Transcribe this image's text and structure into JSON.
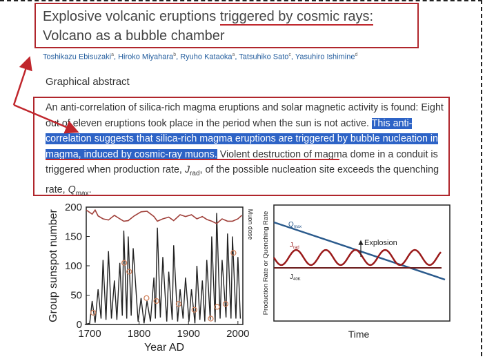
{
  "header": {
    "title": {
      "parts": [
        "Explosive volcanic eruptions",
        "triggered by cosmic rays:",
        "Volcano as a bubble chamber"
      ]
    },
    "authors": [
      {
        "name": "Toshikazu Ebisuzaki",
        "affiliation": "a"
      },
      {
        "name": "Hiroko Miyahara",
        "affiliation": "b"
      },
      {
        "name": "Ryuho Kataoka",
        "affiliation": "a"
      },
      {
        "name": "Tatsuhiko Sato",
        "affiliation": "c"
      },
      {
        "name": "Yasuhiro Ishimine",
        "affiliation": "d"
      }
    ]
  },
  "graphical_abstract": {
    "heading": "Graphical abstract",
    "abstract": [
      "An anti-correlation of silica-rich magma eruptions and solar magnetic activity is found: Eight out of eleven eruptions took place in the period when the sun is not active.",
      "This anti-correlation suggests that silica-rich magma eruptions are triggered by bubble nucleation in magma, induced by cosmic-ray muons.",
      "Violent destruction of magma dome in a conduit is triggered when production rate,",
      "J",
      "rad",
      ", of the possible nucleation site exceeds the quenching rate,",
      "Q",
      "max",
      "."
    ]
  },
  "chart_data": [
    {
      "type": "line",
      "x_label": "Year AD",
      "y_label": "Group sunspot number",
      "xlim": [
        1693,
        2010
      ],
      "ylim": [
        0,
        200
      ],
      "xticks": [
        1700,
        1800,
        1900,
        2000
      ],
      "yticks": [
        0,
        50,
        100,
        150,
        200
      ],
      "series": [
        {
          "color": "#222222",
          "x": [
            1690,
            1700,
            1705,
            1711,
            1717,
            1723,
            1727,
            1733,
            1738,
            1744,
            1750,
            1755,
            1761,
            1766,
            1769,
            1775,
            1778,
            1784,
            1788,
            1798,
            1804,
            1810,
            1816,
            1823,
            1830,
            1833,
            1837,
            1843,
            1848,
            1856,
            1860,
            1867,
            1870,
            1878,
            1883,
            1889,
            1894,
            1901,
            1906,
            1913,
            1917,
            1923,
            1928,
            1933,
            1937,
            1944,
            1947,
            1954,
            1957,
            1964,
            1968,
            1976,
            1979,
            1986,
            1989,
            1996,
            2000,
            2005
          ],
          "values": [
            0,
            2,
            40,
            3,
            60,
            10,
            110,
            8,
            125,
            10,
            75,
            8,
            105,
            15,
            160,
            10,
            150,
            15,
            130,
            5,
            45,
            2,
            40,
            5,
            80,
            10,
            165,
            12,
            115,
            5,
            90,
            8,
            135,
            5,
            60,
            10,
            80,
            5,
            60,
            2,
            100,
            8,
            75,
            5,
            110,
            8,
            150,
            4,
            190,
            10,
            110,
            12,
            155,
            10,
            150,
            10,
            115,
            10
          ]
        },
        {
          "name": "Muon dose",
          "color": "#a0403a",
          "x": [
            1693,
            1705,
            1711,
            1717,
            1727,
            1738,
            1750,
            1761,
            1769,
            1778,
            1790,
            1804,
            1816,
            1830,
            1837,
            1848,
            1860,
            1870,
            1883,
            1894,
            1906,
            1917,
            1928,
            1937,
            1947,
            1957,
            1968,
            1979,
            1989,
            2000,
            2008
          ],
          "values": [
            195,
            188,
            195,
            185,
            180,
            178,
            186,
            180,
            176,
            177,
            185,
            192,
            193,
            184,
            176,
            180,
            183,
            177,
            187,
            184,
            187,
            180,
            184,
            179,
            176,
            172,
            180,
            176,
            176,
            180,
            186
          ]
        },
        {
          "type": "scatter",
          "color": "#d0805a",
          "x": [
            1707,
            1770,
            1780,
            1815,
            1835,
            1880,
            1912,
            1945,
            1958,
            1975,
            1991
          ],
          "values": [
            20,
            105,
            90,
            45,
            40,
            35,
            25,
            10,
            30,
            35,
            122
          ]
        }
      ]
    },
    {
      "type": "schematic",
      "x_label": "Time",
      "y_label": "Production Rate or Quenching Rate",
      "labels": [
        {
          "main": "Q",
          "sub": "max"
        },
        {
          "main": "J",
          "sub": "rad"
        },
        {
          "main": "J",
          "sub": "40K"
        },
        {
          "main": "Explosion"
        }
      ]
    }
  ]
}
